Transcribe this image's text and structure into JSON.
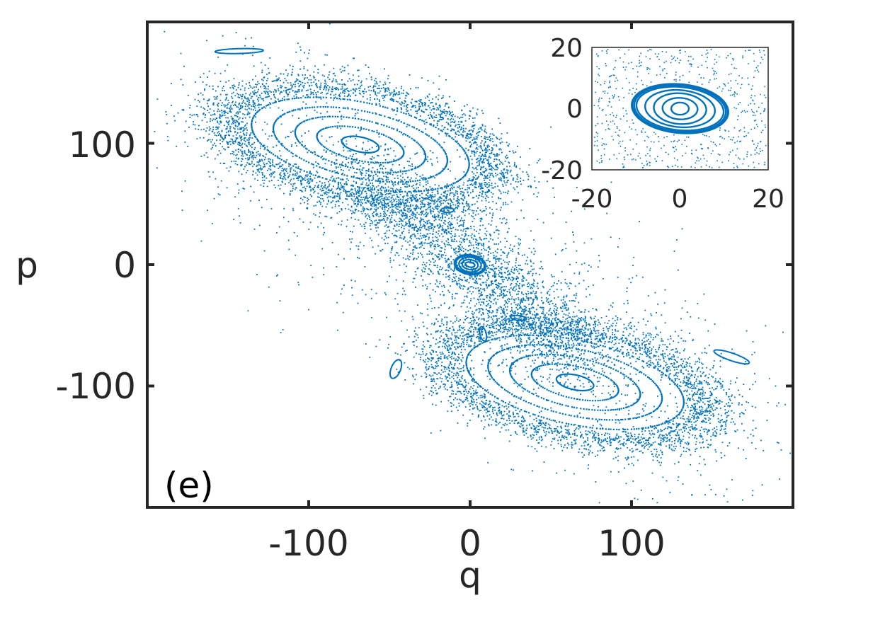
{
  "chart_data": [
    {
      "type": "scatter",
      "panel_label": "(e)",
      "xlabel": "q",
      "ylabel": "p",
      "xlim": [
        -200,
        200
      ],
      "ylim": [
        -200,
        200
      ],
      "xticks": [
        -100,
        0,
        100
      ],
      "xtick_labels": [
        "-100",
        "0",
        "100"
      ],
      "yticks": [
        -100,
        0,
        100
      ],
      "ytick_labels": [
        "-100",
        "0",
        "100"
      ],
      "grid": false,
      "color": "#0072BD",
      "series": [
        {
          "values": {
            "elliptic_islands": [
              {
                "center": [
                  -68,
                  99
                ],
                "rx": [
                  12,
                  28,
                  42,
                  56,
                  70
                ],
                "ry": [
                  6,
                  13,
                  20,
                  27,
                  34
                ],
                "angle_deg": -18
              },
              {
                "center": [
                  65,
                  -97
                ],
                "rx": [
                  12,
                  28,
                  42,
                  56,
                  70
                ],
                "ry": [
                  6,
                  13,
                  20,
                  27,
                  34
                ],
                "angle_deg": -18
              },
              {
                "center": [
                  0,
                  0
                ],
                "rx": [
                  3,
                  5,
                  7,
                  9,
                  10
                ],
                "ry": [
                  2,
                  4,
                  6,
                  7,
                  8
                ],
                "angle_deg": -20
              }
            ],
            "small_islands": [
              {
                "center": [
                  -143,
                  176
                ],
                "rx": 15,
                "ry": 2,
                "angle_deg": 2
              },
              {
                "center": [
                  162,
                  -76
                ],
                "rx": 12,
                "ry": 3,
                "angle_deg": -25
              },
              {
                "center": [
                  -46,
                  -86
                ],
                "rx": 3,
                "ry": 8,
                "angle_deg": -15
              },
              {
                "center": [
                  -14,
                  45
                ],
                "rx": 4,
                "ry": 2,
                "angle_deg": 0
              },
              {
                "center": [
                  30,
                  -44
                ],
                "rx": 5,
                "ry": 2,
                "angle_deg": -10
              },
              {
                "center": [
                  8,
                  -57
                ],
                "rx": 2,
                "ry": 6,
                "angle_deg": 10
              }
            ],
            "chaotic_sea": "scattered points distributed along the separatrix band between the islands"
          }
        }
      ]
    },
    {
      "type": "scatter",
      "inset": true,
      "xlim": [
        -20,
        20
      ],
      "ylim": [
        -20,
        20
      ],
      "xticks": [
        -20,
        0,
        20
      ],
      "xtick_labels": [
        "-20",
        "0",
        "20"
      ],
      "yticks": [
        -20,
        0,
        20
      ],
      "ytick_labels": [
        "-20",
        "0",
        "20"
      ],
      "color": "#0072BD",
      "series": [
        {
          "values": {
            "elliptic_islands": [
              {
                "center": [
                  0,
                  0
                ],
                "rx": [
                  2,
                  4,
                  6,
                  8,
                  10,
                  10.5
                ],
                "ry": [
                  2,
                  3.5,
                  5,
                  6,
                  7,
                  7.5
                ],
                "angle_deg": -12
              }
            ],
            "chaotic_sea": "scattered points surrounding the central island"
          }
        }
      ]
    }
  ]
}
